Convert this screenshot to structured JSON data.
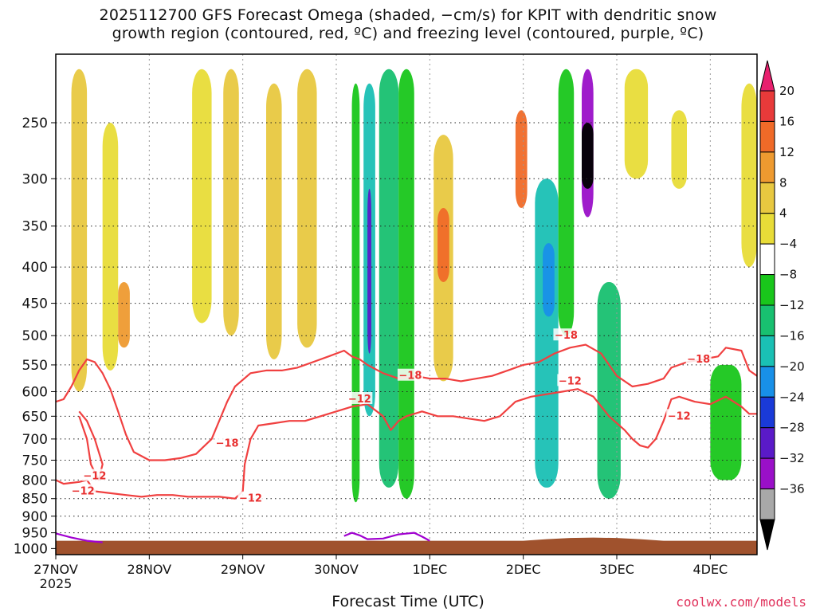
{
  "title_line1": "2025112700 GFS Forecast Omega (shaded, −cm/s) for KPIT with dendritic snow",
  "title_line2": "growth region (contoured, red, ºC) and freezing level (contoured, purple, ºC)",
  "x_title": "Forecast Time (UTC)",
  "credit": "coolwx.com/models",
  "chart_data": {
    "type": "heatmap",
    "title": "2025112700 GFS Forecast Omega (shaded, −cm/s) for KPIT with dendritic snow growth region (contoured, red, ºC) and freezing level (contoured, purple, ºC)",
    "xlabel": "Forecast Time (UTC)",
    "ylabel": "",
    "x_ticks": [
      {
        "label": "27NOV",
        "sublabel": "2025",
        "hours": 0
      },
      {
        "label": "28NOV",
        "hours": 24
      },
      {
        "label": "29NOV",
        "hours": 48
      },
      {
        "label": "30NOV",
        "hours": 72
      },
      {
        "label": "1DEC",
        "hours": 96
      },
      {
        "label": "2DEC",
        "hours": 120
      },
      {
        "label": "3DEC",
        "hours": 144
      },
      {
        "label": "4DEC",
        "hours": 168
      }
    ],
    "xlim_hours": [
      0,
      180
    ],
    "y_ticks_hpa": [
      250,
      300,
      350,
      400,
      450,
      500,
      550,
      600,
      650,
      700,
      750,
      800,
      850,
      900,
      950,
      1000
    ],
    "ylim_hpa": [
      200,
      1000
    ],
    "y_scale": "log-pressure (inverted)",
    "grid": "dotted",
    "colorbar": {
      "labels": [
        "20",
        "16",
        "12",
        "8",
        "4",
        "−4",
        "−8",
        "−12",
        "−16",
        "−20",
        "−24",
        "−28",
        "−32",
        "−36"
      ],
      "colors": [
        "#e8206e",
        "#e83a3a",
        "#f06a28",
        "#ee9a30",
        "#e8c840",
        "#e8dc38",
        "#ffffff",
        "#19c61b",
        "#18c070",
        "#1ac0b4",
        "#1890e8",
        "#1a3ad8",
        "#5a1ac8",
        "#9a10c8",
        "#a8a8a8",
        "#000000"
      ]
    },
    "omega_regions": [
      {
        "hours": [
          4,
          8
        ],
        "hpa": [
          210,
          600
        ],
        "value": 6
      },
      {
        "hours": [
          12,
          16
        ],
        "hpa": [
          250,
          560
        ],
        "value": 5
      },
      {
        "hours": [
          16,
          19
        ],
        "hpa": [
          420,
          520
        ],
        "value": 8
      },
      {
        "hours": [
          35,
          40
        ],
        "hpa": [
          210,
          480
        ],
        "value": 5
      },
      {
        "hours": [
          43,
          47
        ],
        "hpa": [
          210,
          500
        ],
        "value": 6
      },
      {
        "hours": [
          54,
          58
        ],
        "hpa": [
          220,
          540
        ],
        "value": 6
      },
      {
        "hours": [
          62,
          67
        ],
        "hpa": [
          210,
          520
        ],
        "value": 6
      },
      {
        "hours": [
          76,
          78
        ],
        "hpa": [
          220,
          860
        ],
        "value": -6
      },
      {
        "hours": [
          79,
          82
        ],
        "hpa": [
          220,
          650
        ],
        "value": -13
      },
      {
        "hours": [
          80,
          81
        ],
        "hpa": [
          310,
          530
        ],
        "value": -26
      },
      {
        "hours": [
          83,
          88
        ],
        "hpa": [
          210,
          820
        ],
        "value": -10
      },
      {
        "hours": [
          88,
          92
        ],
        "hpa": [
          210,
          850
        ],
        "value": -6
      },
      {
        "hours": [
          97,
          102
        ],
        "hpa": [
          260,
          580
        ],
        "value": 6
      },
      {
        "hours": [
          98,
          101
        ],
        "hpa": [
          330,
          420
        ],
        "value": 12
      },
      {
        "hours": [
          118,
          121
        ],
        "hpa": [
          240,
          330
        ],
        "value": 13
      },
      {
        "hours": [
          123,
          129
        ],
        "hpa": [
          300,
          820
        ],
        "value": -12
      },
      {
        "hours": [
          125,
          128
        ],
        "hpa": [
          370,
          470
        ],
        "value": -16
      },
      {
        "hours": [
          129,
          133
        ],
        "hpa": [
          210,
          500
        ],
        "value": -6
      },
      {
        "hours": [
          135,
          138
        ],
        "hpa": [
          210,
          340
        ],
        "value": -30
      },
      {
        "hours": [
          135,
          138
        ],
        "hpa": [
          250,
          310
        ],
        "value": -38
      },
      {
        "hours": [
          139,
          145
        ],
        "hpa": [
          420,
          850
        ],
        "value": -9
      },
      {
        "hours": [
          146,
          152
        ],
        "hpa": [
          210,
          300
        ],
        "value": 5
      },
      {
        "hours": [
          158,
          162
        ],
        "hpa": [
          240,
          310
        ],
        "value": 5
      },
      {
        "hours": [
          168,
          176
        ],
        "hpa": [
          550,
          800
        ],
        "value": -6
      },
      {
        "hours": [
          176,
          180
        ],
        "hpa": [
          220,
          400
        ],
        "value": 5
      }
    ],
    "contours": [
      {
        "label": "-18",
        "color": "#f04040",
        "points": [
          [
            0,
            620
          ],
          [
            2,
            615
          ],
          [
            4,
            590
          ],
          [
            6,
            560
          ],
          [
            8,
            540
          ],
          [
            10,
            545
          ],
          [
            12,
            565
          ],
          [
            14,
            595
          ],
          [
            16,
            640
          ],
          [
            18,
            690
          ],
          [
            20,
            730
          ],
          [
            24,
            750
          ],
          [
            28,
            750
          ],
          [
            32,
            745
          ],
          [
            36,
            735
          ],
          [
            40,
            700
          ],
          [
            44,
            620
          ],
          [
            46,
            590
          ],
          [
            50,
            565
          ],
          [
            54,
            560
          ],
          [
            58,
            560
          ],
          [
            62,
            555
          ],
          [
            66,
            545
          ],
          [
            70,
            535
          ],
          [
            74,
            525
          ],
          [
            76,
            535
          ],
          [
            78,
            540
          ],
          [
            80,
            550
          ],
          [
            84,
            565
          ],
          [
            88,
            575
          ],
          [
            92,
            570
          ],
          [
            96,
            575
          ],
          [
            100,
            575
          ],
          [
            104,
            580
          ],
          [
            108,
            575
          ],
          [
            112,
            570
          ],
          [
            116,
            560
          ],
          [
            120,
            550
          ],
          [
            124,
            545
          ],
          [
            128,
            530
          ],
          [
            132,
            520
          ],
          [
            136,
            515
          ],
          [
            140,
            530
          ],
          [
            144,
            570
          ],
          [
            148,
            590
          ],
          [
            152,
            585
          ],
          [
            156,
            575
          ],
          [
            158,
            555
          ],
          [
            162,
            545
          ],
          [
            166,
            540
          ],
          [
            170,
            535
          ],
          [
            172,
            520
          ],
          [
            176,
            525
          ],
          [
            178,
            560
          ],
          [
            180,
            570
          ]
        ]
      },
      {
        "label": "-12",
        "color": "#f04040",
        "points": [
          [
            0,
            800
          ],
          [
            2,
            810
          ],
          [
            6,
            805
          ],
          [
            8,
            800
          ],
          [
            10,
            830
          ],
          [
            14,
            835
          ],
          [
            18,
            840
          ],
          [
            22,
            845
          ],
          [
            26,
            840
          ],
          [
            30,
            840
          ],
          [
            34,
            845
          ],
          [
            38,
            845
          ],
          [
            42,
            845
          ],
          [
            46,
            850
          ],
          [
            48,
            830
          ],
          [
            48.5,
            760
          ],
          [
            50,
            700
          ],
          [
            52,
            670
          ],
          [
            56,
            665
          ],
          [
            60,
            660
          ],
          [
            64,
            660
          ],
          [
            68,
            650
          ],
          [
            72,
            640
          ],
          [
            76,
            630
          ],
          [
            80,
            625
          ],
          [
            84,
            650
          ],
          [
            86,
            680
          ],
          [
            88,
            660
          ],
          [
            90,
            650
          ],
          [
            94,
            640
          ],
          [
            98,
            650
          ],
          [
            102,
            650
          ],
          [
            106,
            655
          ],
          [
            110,
            660
          ],
          [
            114,
            650
          ],
          [
            118,
            620
          ],
          [
            122,
            610
          ],
          [
            126,
            605
          ],
          [
            130,
            600
          ],
          [
            134,
            595
          ],
          [
            138,
            610
          ],
          [
            142,
            650
          ],
          [
            146,
            680
          ],
          [
            148,
            700
          ],
          [
            150,
            715
          ],
          [
            152,
            720
          ],
          [
            154,
            700
          ],
          [
            156,
            660
          ],
          [
            158,
            615
          ],
          [
            160,
            610
          ],
          [
            164,
            620
          ],
          [
            168,
            625
          ],
          [
            172,
            610
          ],
          [
            176,
            630
          ],
          [
            178,
            645
          ],
          [
            180,
            645
          ]
        ]
      },
      {
        "label": "-12",
        "color": "#f04040",
        "points": [
          [
            6,
            640
          ],
          [
            8,
            660
          ],
          [
            10,
            700
          ],
          [
            12,
            760
          ],
          [
            11,
            800
          ],
          [
            9,
            760
          ],
          [
            8,
            700
          ],
          [
            6,
            650
          ]
        ]
      },
      {
        "label": "",
        "color": "#a000d0",
        "points": [
          [
            0,
            952
          ],
          [
            4,
            965
          ],
          [
            8,
            975
          ],
          [
            12,
            980
          ]
        ]
      },
      {
        "label": "",
        "color": "#a000d0",
        "points": [
          [
            74,
            960
          ],
          [
            76,
            950
          ],
          [
            78,
            958
          ],
          [
            80,
            970
          ],
          [
            84,
            968
          ],
          [
            88,
            955
          ],
          [
            92,
            950
          ],
          [
            94,
            962
          ],
          [
            96,
            975
          ]
        ]
      }
    ],
    "contour_labels": [
      {
        "text": "−18",
        "hours": 44,
        "hpa": 710
      },
      {
        "text": "−12",
        "hours": 10,
        "hpa": 790
      },
      {
        "text": "−12",
        "hours": 7,
        "hpa": 830
      },
      {
        "text": "−12",
        "hours": 50,
        "hpa": 850
      },
      {
        "text": "−12",
        "hours": 78,
        "hpa": 615
      },
      {
        "text": "−18",
        "hours": 91,
        "hpa": 570
      },
      {
        "text": "−18",
        "hours": 131,
        "hpa": 500
      },
      {
        "text": "−12",
        "hours": 132,
        "hpa": 580
      },
      {
        "text": "−18",
        "hours": 165,
        "hpa": 540
      },
      {
        "text": "−12",
        "hours": 160,
        "hpa": 650
      }
    ],
    "terrain_hpa_top": 975,
    "terrain_color": "#a0522d"
  }
}
